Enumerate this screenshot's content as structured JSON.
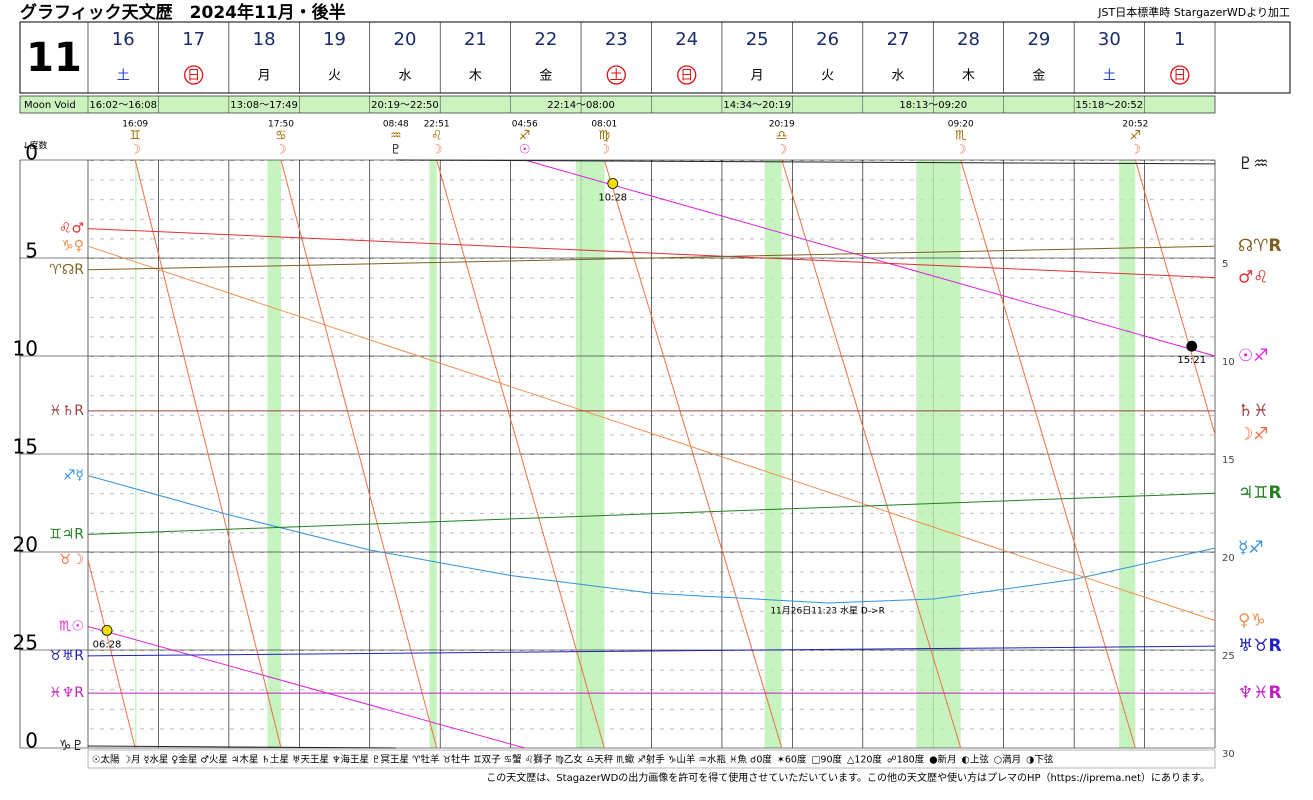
{
  "chart_data": {
    "type": "line",
    "title": "グラフィック天文歴　2024年11月・後半",
    "subtitle": "JST日本標準時 StargazerWDより加工",
    "month": "11",
    "days": [
      {
        "day": "16",
        "weekday": "土"
      },
      {
        "day": "17",
        "weekday": "日",
        "holiday": true
      },
      {
        "day": "18",
        "weekday": "月"
      },
      {
        "day": "19",
        "weekday": "火"
      },
      {
        "day": "20",
        "weekday": "水"
      },
      {
        "day": "21",
        "weekday": "木"
      },
      {
        "day": "22",
        "weekday": "金"
      },
      {
        "day": "23",
        "weekday": "土",
        "holiday": true
      },
      {
        "day": "24",
        "weekday": "日",
        "holiday": true
      },
      {
        "day": "25",
        "weekday": "月"
      },
      {
        "day": "26",
        "weekday": "火"
      },
      {
        "day": "27",
        "weekday": "水"
      },
      {
        "day": "28",
        "weekday": "木"
      },
      {
        "day": "29",
        "weekday": "金"
      },
      {
        "day": "30",
        "weekday": "土"
      },
      {
        "day": "1",
        "weekday": "日",
        "holiday": true
      }
    ],
    "moon_void_label": "Moon Void",
    "moon_void": [
      {
        "label": "16:02～16:08",
        "start": 0.668,
        "end": 0.672
      },
      {
        "label": "13:08～17:49",
        "start": 2.547,
        "end": 2.742
      },
      {
        "label": "20:19～22:50",
        "start": 4.847,
        "end": 4.951
      },
      {
        "label": "22:14～08:00",
        "start": 6.926,
        "end": 7.333
      },
      {
        "label": "14:34～20:19",
        "start": 9.607,
        "end": 9.847
      },
      {
        "label": "18:13～09:20",
        "start": 11.759,
        "end": 12.389
      },
      {
        "label": "15:18～20:52",
        "start": 14.638,
        "end": 14.869
      }
    ],
    "y_label": "↓度数",
    "xlim": [
      0,
      16
    ],
    "ylim": [
      0,
      30
    ],
    "yticks": [
      0,
      5,
      10,
      15,
      20,
      25,
      {
        "value": 30,
        "label": "0"
      }
    ],
    "y2ticks": [
      5,
      10,
      15,
      20,
      25,
      30
    ],
    "ingresses": [
      {
        "x": 0.67,
        "time": "16:09",
        "sign": "♊",
        "planet": "☽",
        "color": "#f07040"
      },
      {
        "x": 2.74,
        "time": "17:50",
        "sign": "♋",
        "planet": "☽",
        "color": "#f07040"
      },
      {
        "x": 4.37,
        "time": "08:48",
        "sign": "♒",
        "planet": "♇",
        "color": "#222222"
      },
      {
        "x": 4.95,
        "time": "22:51",
        "sign": "♌",
        "planet": "☽",
        "color": "#f07040"
      },
      {
        "x": 6.2,
        "time": "04:56",
        "sign": "♐",
        "planet": "☉",
        "color": "#e020e0"
      },
      {
        "x": 7.33,
        "time": "08:01",
        "sign": "♍",
        "planet": "☽",
        "color": "#f07040"
      },
      {
        "x": 9.85,
        "time": "20:19",
        "sign": "♎",
        "planet": "☽",
        "color": "#f07040"
      },
      {
        "x": 12.39,
        "time": "09:20",
        "sign": "♏",
        "planet": "☽",
        "color": "#f07040"
      },
      {
        "x": 14.87,
        "time": "20:52",
        "sign": "♐",
        "planet": "☽",
        "color": "#f07040"
      }
    ],
    "series": [
      {
        "name": "太陽",
        "color": "#e020e0",
        "left_label": "♏☉",
        "right_label": "☉♐",
        "x": [
          0,
          6.2,
          6.2,
          6.2,
          16
        ],
        "values": [
          23.8,
          30,
          null,
          0,
          10
        ]
      },
      {
        "name": "月",
        "color": "#f07040",
        "left_label": "♉☽",
        "right_label": "☽♐",
        "x": [
          0,
          0.67,
          0.67,
          0.67,
          2.74,
          2.74,
          2.74,
          4.95,
          4.95,
          4.95,
          7.33,
          7.33,
          7.33,
          9.85,
          9.85,
          9.85,
          12.39,
          12.39,
          12.39,
          14.87,
          14.87,
          14.87,
          16
        ],
        "values": [
          20.4,
          30,
          null,
          0,
          30,
          null,
          0,
          30,
          null,
          0,
          30,
          null,
          0,
          30,
          null,
          0,
          30,
          null,
          0,
          30,
          null,
          0,
          14
        ]
      },
      {
        "name": "水星",
        "color": "#3090e0",
        "left_label": "♐☿",
        "right_label": "☿♐",
        "x": [
          0,
          2,
          4,
          6,
          8,
          10.5,
          12,
          14,
          16
        ],
        "values": [
          16.1,
          18.1,
          19.9,
          21.2,
          22.1,
          22.6,
          22.4,
          21.4,
          19.8
        ]
      },
      {
        "name": "金星",
        "color": "#f09050",
        "left_label": "♑♀",
        "right_label": "♀♑",
        "x": [
          0,
          16
        ],
        "values": [
          4.4,
          23.5
        ]
      },
      {
        "name": "火星",
        "color": "#e03030",
        "left_label": "♌♂",
        "right_label": "♂♌",
        "x": [
          0,
          16
        ],
        "values": [
          3.5,
          6.0
        ]
      },
      {
        "name": "木星",
        "color": "#208020",
        "left_label": "♊♃R",
        "right_label": "♃♊R",
        "x": [
          0,
          16
        ],
        "values": [
          19.1,
          17.0
        ]
      },
      {
        "name": "土星",
        "color": "#a04040",
        "left_label": "♓♄R",
        "right_label": "♄♓",
        "x": [
          0,
          16
        ],
        "values": [
          12.8,
          12.8
        ]
      },
      {
        "name": "天王星",
        "color": "#2020c0",
        "left_label": "♉♅R",
        "right_label": "♅♉R",
        "x": [
          0,
          16
        ],
        "values": [
          25.3,
          24.8
        ]
      },
      {
        "name": "海王星",
        "color": "#c020c0",
        "left_label": "♓♆R",
        "right_label": "♆♓R",
        "x": [
          0,
          16
        ],
        "values": [
          27.2,
          27.2
        ]
      },
      {
        "name": "冥王星",
        "color": "#222222",
        "left_label": "♑♇",
        "right_label": "♇♒",
        "x": [
          0,
          4.37,
          4.37,
          4.37,
          16
        ],
        "values": [
          29.9,
          30,
          null,
          0,
          0.2
        ]
      },
      {
        "name": "ドラゴンヘッド",
        "color": "#806020",
        "left_label": "♈☊R",
        "right_label": "☊♈R",
        "x": [
          0,
          16
        ],
        "values": [
          5.6,
          4.4
        ]
      }
    ],
    "phases": [
      {
        "x": 0.27,
        "value": 24.0,
        "label": "06:28",
        "color": "#f0e000"
      },
      {
        "x": 7.45,
        "value": 1.2,
        "label": "10:28",
        "color": "#f0e000"
      },
      {
        "x": 15.67,
        "value": 9.5,
        "label": "15:21",
        "color": "#000000"
      }
    ],
    "annotation": {
      "text": "11月26日11:23 水星 D->R",
      "x": 10.5,
      "value": 23.0
    },
    "legend": [
      "☉太陽",
      "☽月",
      "☿水星",
      "♀金星",
      "♂火星",
      "♃木星",
      "♄土星",
      "♅天王星",
      "♆海王星",
      "♇冥王星",
      "♈牡羊",
      "♉牡牛",
      "♊双子",
      "♋蟹",
      "♌獅子",
      "♍乙女",
      "♎天秤",
      "♏蠍",
      "♐射手",
      "♑山羊",
      "♒水瓶",
      "♓魚",
      "☌0度",
      "✶60度",
      "□90度",
      "△120度",
      "☍180度",
      "●新月",
      "◐上弦",
      "○満月",
      "◑下弦"
    ],
    "footer": "この天文歴は、StagazerWDの出力画像を許可を得て使用させていただいています。この他の天文歴や使い方はプレマのHP（https://iprema.net）にあります。"
  }
}
